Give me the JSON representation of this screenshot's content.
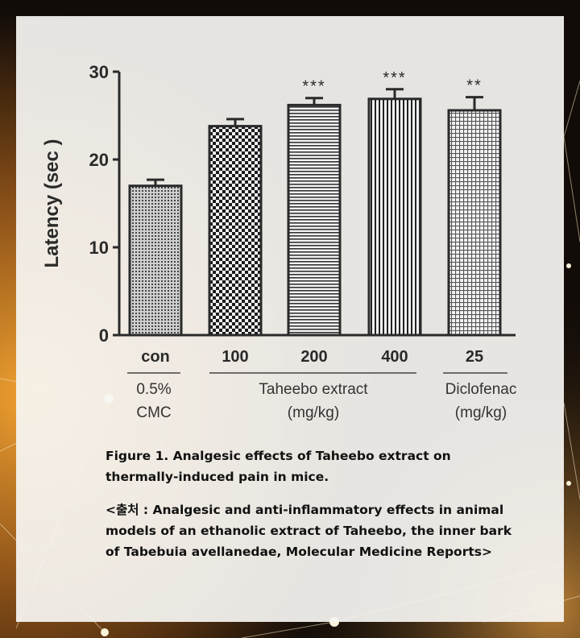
{
  "chart_data": {
    "type": "bar",
    "ylabel": "Latency (sec )",
    "ylim": [
      0,
      30
    ],
    "yticks": [
      "0",
      "10",
      "20",
      "30"
    ],
    "categories": [
      "con",
      "100",
      "200",
      "400",
      "25"
    ],
    "values": [
      17.0,
      23.8,
      26.2,
      26.9,
      25.6
    ],
    "error": [
      0.7,
      0.8,
      0.8,
      1.1,
      1.5
    ],
    "significance": [
      "",
      "",
      "***",
      "***",
      "**"
    ],
    "patterns": [
      "dots",
      "checker",
      "hlines",
      "vlines",
      "grid"
    ],
    "groups": [
      {
        "label_line1": "0.5%",
        "label_line2": "CMC"
      },
      {
        "label_line1": "Taheebo extract",
        "label_line2": "(mg/kg)"
      },
      {
        "label_line1": "Diclofenac",
        "label_line2": "(mg/kg)"
      }
    ]
  },
  "captions": {
    "figure": "Figure 1. Analgesic effects of Taheebo extract on thermally-induced pain in mice.",
    "source": "<출처 : Analgesic and anti-inflammatory effects in animal models of an ethanolic extract of Taheebo, the inner bark of Tabebuia avellanedae, Molecular Medicine Reports>"
  },
  "colors": {
    "background_dark": "#0d0a08",
    "background_glow": "#e0962a",
    "panel": "#f6f5f2",
    "bar_ink": "#2a2a2a"
  }
}
